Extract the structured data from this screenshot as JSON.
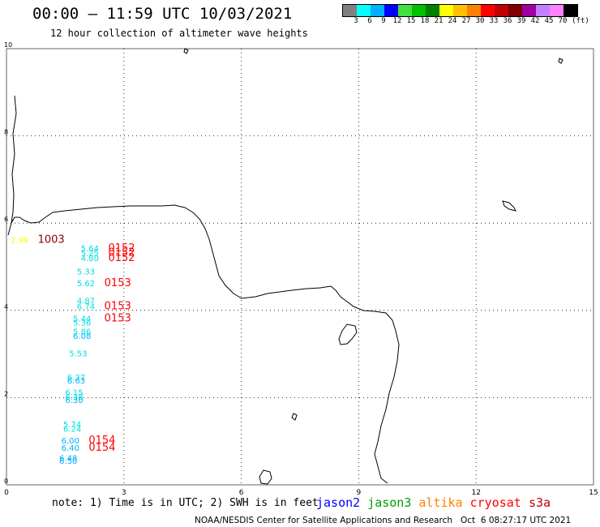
{
  "header": {
    "title": "00:00 – 11:59 UTC 10/03/2021",
    "subtitle": "12 hour collection of altimeter wave heights"
  },
  "legend": {
    "colors": [
      "#808080",
      "#00ffff",
      "#00b0ff",
      "#0000ff",
      "#40e040",
      "#00c000",
      "#008000",
      "#ffff00",
      "#ffc000",
      "#ff8000",
      "#ff0000",
      "#c00000",
      "#800000",
      "#a000a0",
      "#c080ff",
      "#ff80ff",
      "#000000"
    ],
    "labels": [
      "3",
      "6",
      "9",
      "12",
      "15",
      "18",
      "21",
      "24",
      "27",
      "30",
      "33",
      "36",
      "39",
      "42",
      "45",
      "70"
    ],
    "unit": "(ft)"
  },
  "axes": {
    "x_ticks": [
      "0",
      "3",
      "6",
      "9",
      "12",
      "15"
    ],
    "y_ticks": [
      "10",
      "8",
      "6",
      "4",
      "2",
      "0"
    ],
    "x_range": [
      0,
      15
    ],
    "y_range": [
      0,
      10
    ]
  },
  "observations": [
    {
      "x": 0.1,
      "y": 5.55,
      "value": "2.99",
      "color": "#ffff00"
    },
    {
      "x": 0.8,
      "y": 5.55,
      "value": "1003",
      "color": "#800000"
    },
    {
      "x": 1.9,
      "y": 5.35,
      "value": "5.64",
      "color": "#00e0e0"
    },
    {
      "x": 1.9,
      "y": 5.25,
      "value": "5.25",
      "color": "#00e0e0"
    },
    {
      "x": 1.9,
      "y": 5.13,
      "value": "4.80",
      "color": "#00e0e0"
    },
    {
      "x": 2.6,
      "y": 5.35,
      "value": "0152",
      "color": "#ff0000"
    },
    {
      "x": 2.6,
      "y": 5.25,
      "value": "0152",
      "color": "#ff0000"
    },
    {
      "x": 2.6,
      "y": 5.13,
      "value": "0152",
      "color": "#ff0000"
    },
    {
      "x": 1.8,
      "y": 4.82,
      "value": "5.33",
      "color": "#00e0e0"
    },
    {
      "x": 1.8,
      "y": 4.55,
      "value": "5.62",
      "color": "#00e0e0"
    },
    {
      "x": 2.5,
      "y": 4.55,
      "value": "0153",
      "color": "#ff0000"
    },
    {
      "x": 1.8,
      "y": 4.15,
      "value": "4.87",
      "color": "#00e0e0"
    },
    {
      "x": 1.8,
      "y": 4.02,
      "value": "6.74",
      "color": "#00e0e0"
    },
    {
      "x": 2.5,
      "y": 4.02,
      "value": "0153",
      "color": "#ff0000"
    },
    {
      "x": 1.7,
      "y": 3.75,
      "value": "5.44",
      "color": "#00e0e0"
    },
    {
      "x": 1.7,
      "y": 3.65,
      "value": "5.36",
      "color": "#00e0e0"
    },
    {
      "x": 2.5,
      "y": 3.75,
      "value": "0153",
      "color": "#ff0000"
    },
    {
      "x": 1.7,
      "y": 3.45,
      "value": "5.86",
      "color": "#00e0e0"
    },
    {
      "x": 1.7,
      "y": 3.35,
      "value": "6.08",
      "color": "#00b0ff"
    },
    {
      "x": 1.6,
      "y": 2.95,
      "value": "5.53",
      "color": "#00e0e0"
    },
    {
      "x": 1.55,
      "y": 2.4,
      "value": "6.37",
      "color": "#00e0e0"
    },
    {
      "x": 1.55,
      "y": 2.32,
      "value": "6.63",
      "color": "#00b0ff"
    },
    {
      "x": 1.5,
      "y": 2.05,
      "value": "6.15",
      "color": "#00e0e0"
    },
    {
      "x": 1.5,
      "y": 1.95,
      "value": "6.38",
      "color": "#00e0e0"
    },
    {
      "x": 1.5,
      "y": 1.88,
      "value": "6.30",
      "color": "#00b0ff"
    },
    {
      "x": 1.45,
      "y": 1.32,
      "value": "5.74",
      "color": "#00e0e0"
    },
    {
      "x": 1.45,
      "y": 1.22,
      "value": "6.24",
      "color": "#00e0e0"
    },
    {
      "x": 1.4,
      "y": 0.95,
      "value": "6.00",
      "color": "#00b0ff"
    },
    {
      "x": 1.4,
      "y": 0.78,
      "value": "6.40",
      "color": "#00b0ff"
    },
    {
      "x": 2.1,
      "y": 0.95,
      "value": "0154",
      "color": "#ff0000"
    },
    {
      "x": 2.1,
      "y": 0.78,
      "value": "0154",
      "color": "#ff0000"
    },
    {
      "x": 1.35,
      "y": 0.55,
      "value": "6.48",
      "color": "#00b0ff"
    },
    {
      "x": 1.35,
      "y": 0.48,
      "value": "6.50",
      "color": "#00b0ff"
    }
  ],
  "footer": {
    "note": "note: 1) Time is in UTC; 2) SWH is in feet",
    "satellites": [
      {
        "name": "jason2",
        "color": "#0000ff"
      },
      {
        "name": "jason3",
        "color": "#00a000"
      },
      {
        "name": "altika",
        "color": "#ff8000"
      },
      {
        "name": "cryosat",
        "color": "#ff0000"
      },
      {
        "name": "s3a",
        "color": "#c00000"
      }
    ],
    "credit": "NOAA/NESDIS Center for Satellite Applications and Research   Oct  6 08:27:17 UTC 2021"
  }
}
